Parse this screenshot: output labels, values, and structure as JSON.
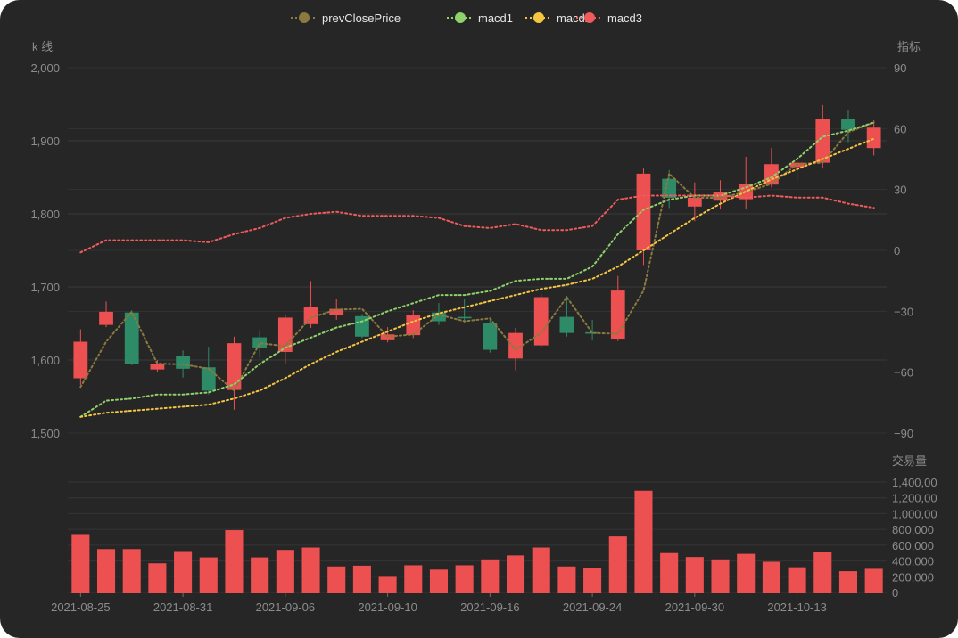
{
  "chart_data": {
    "type": "candlestick",
    "title": "",
    "legend": {
      "placement": "top-center",
      "items": [
        {
          "name": "prevClosePrice",
          "color": "#8b7a3f"
        },
        {
          "name": "macd1",
          "color": "#8fd16a"
        },
        {
          "name": "macd2",
          "color": "#f5c542"
        },
        {
          "name": "macd3",
          "color": "#f05a5a"
        }
      ]
    },
    "axes": {
      "price": {
        "label": "k 线",
        "min": 1500,
        "max": 2000,
        "ticks": [
          "2,000",
          "1,900",
          "1,800",
          "1,700",
          "1,600",
          "1,500"
        ],
        "tick_values": [
          2000,
          1900,
          1800,
          1700,
          1600,
          1500
        ]
      },
      "indicator": {
        "label": "指标",
        "min": -90,
        "max": 90,
        "ticks": [
          "90",
          "60",
          "30",
          "0",
          "−30",
          "−60",
          "−90"
        ],
        "tick_values": [
          90,
          60,
          30,
          0,
          -30,
          -60,
          -90
        ]
      },
      "volume": {
        "label": "交易量",
        "min": 0,
        "max": 1400000,
        "ticks": [
          "1,400,00",
          "1,200,00",
          "1,000,00",
          "800,000",
          "600,000",
          "400,000",
          "200,000",
          "0"
        ],
        "tick_values": [
          1400000,
          1200000,
          1000000,
          800000,
          600000,
          400000,
          200000,
          0
        ]
      }
    },
    "x_tick_labels": [
      {
        "index": 0,
        "label": "2021-08-25"
      },
      {
        "index": 4,
        "label": "2021-08-31"
      },
      {
        "index": 8,
        "label": "2021-09-06"
      },
      {
        "index": 12,
        "label": "2021-09-10"
      },
      {
        "index": 16,
        "label": "2021-09-16"
      },
      {
        "index": 20,
        "label": "2021-09-24"
      },
      {
        "index": 24,
        "label": "2021-09-30"
      },
      {
        "index": 28,
        "label": "2021-10-13"
      }
    ],
    "colors": {
      "up": "#ec5050",
      "down": "#2e8b68",
      "volume": "#ec5050"
    },
    "candles": [
      {
        "open": 1575,
        "close": 1625,
        "high": 1642,
        "low": 1566
      },
      {
        "open": 1648,
        "close": 1666,
        "high": 1680,
        "low": 1645
      },
      {
        "open": 1665,
        "close": 1595,
        "high": 1668,
        "low": 1593
      },
      {
        "open": 1587,
        "close": 1594,
        "high": 1600,
        "low": 1583
      },
      {
        "open": 1606,
        "close": 1588,
        "high": 1613,
        "low": 1576
      },
      {
        "open": 1590,
        "close": 1558,
        "high": 1618,
        "low": 1553
      },
      {
        "open": 1559,
        "close": 1623,
        "high": 1632,
        "low": 1532
      },
      {
        "open": 1631,
        "close": 1617,
        "high": 1641,
        "low": 1603
      },
      {
        "open": 1611,
        "close": 1658,
        "high": 1662,
        "low": 1595
      },
      {
        "open": 1649,
        "close": 1672,
        "high": 1708,
        "low": 1644
      },
      {
        "open": 1661,
        "close": 1670,
        "high": 1683,
        "low": 1655
      },
      {
        "open": 1660,
        "close": 1632,
        "high": 1663,
        "low": 1630
      },
      {
        "open": 1627,
        "close": 1635,
        "high": 1645,
        "low": 1624
      },
      {
        "open": 1634,
        "close": 1662,
        "high": 1668,
        "low": 1630
      },
      {
        "open": 1665,
        "close": 1653,
        "high": 1678,
        "low": 1648
      },
      {
        "open": 1659,
        "close": 1657,
        "high": 1683,
        "low": 1650
      },
      {
        "open": 1651,
        "close": 1614,
        "high": 1655,
        "low": 1610
      },
      {
        "open": 1602,
        "close": 1637,
        "high": 1644,
        "low": 1586
      },
      {
        "open": 1620,
        "close": 1686,
        "high": 1690,
        "low": 1618
      },
      {
        "open": 1659,
        "close": 1637,
        "high": 1688,
        "low": 1632
      },
      {
        "open": 1638,
        "close": 1636,
        "high": 1655,
        "low": 1627
      },
      {
        "open": 1628,
        "close": 1695,
        "high": 1715,
        "low": 1626
      },
      {
        "open": 1750,
        "close": 1855,
        "high": 1862,
        "low": 1730
      },
      {
        "open": 1848,
        "close": 1822,
        "high": 1860,
        "low": 1808
      },
      {
        "open": 1810,
        "close": 1822,
        "high": 1843,
        "low": 1790
      },
      {
        "open": 1818,
        "close": 1830,
        "high": 1846,
        "low": 1806
      },
      {
        "open": 1820,
        "close": 1841,
        "high": 1878,
        "low": 1806
      },
      {
        "open": 1840,
        "close": 1868,
        "high": 1890,
        "low": 1836
      },
      {
        "open": 1864,
        "close": 1870,
        "high": 1876,
        "low": 1844
      },
      {
        "open": 1870,
        "close": 1930,
        "high": 1949,
        "low": 1862
      },
      {
        "open": 1930,
        "close": 1915,
        "high": 1942,
        "low": 1898
      },
      {
        "open": 1890,
        "close": 1918,
        "high": 1928,
        "low": 1880
      }
    ],
    "volume": [
      740000,
      550000,
      550000,
      370000,
      525000,
      445000,
      790000,
      445000,
      540000,
      570000,
      330000,
      340000,
      210000,
      345000,
      290000,
      345000,
      420000,
      470000,
      570000,
      330000,
      310000,
      710000,
      1290000,
      500000,
      450000,
      420000,
      490000,
      390000,
      320000,
      510000,
      270000,
      300000
    ],
    "series": [
      {
        "name": "prevClosePrice",
        "axis": "price",
        "values": [
          1563,
          1625,
          1666,
          1595,
          1594,
          1588,
          1558,
          1623,
          1619,
          1658,
          1669,
          1670,
          1632,
          1635,
          1662,
          1653,
          1657,
          1614,
          1637,
          1686,
          1637,
          1636,
          1695,
          1855,
          1822,
          1822,
          1830,
          1841,
          1868,
          1870,
          1912,
          1925
        ]
      },
      {
        "name": "macd1",
        "axis": "indicator",
        "values": [
          -82,
          -74,
          -73,
          -71,
          -71,
          -70,
          -66,
          -56,
          -48,
          -43,
          -38,
          -35,
          -30,
          -26,
          -22,
          -22,
          -20,
          -15,
          -14,
          -14,
          -8,
          8,
          20,
          25,
          27,
          27,
          31,
          36,
          45,
          56,
          59,
          63
        ]
      },
      {
        "name": "macd2",
        "axis": "indicator",
        "values": [
          -82,
          -80,
          -79,
          -78,
          -77,
          -76,
          -73,
          -69,
          -63,
          -56,
          -50,
          -45,
          -40,
          -35,
          -31,
          -28,
          -25,
          -22,
          -19,
          -17,
          -14,
          -8,
          0,
          8,
          16,
          23,
          29,
          35,
          40,
          45,
          50,
          55
        ]
      },
      {
        "name": "macd3",
        "axis": "indicator",
        "values": [
          -1,
          5,
          5,
          5,
          5,
          4,
          8,
          11,
          16,
          18,
          19,
          17,
          17,
          17,
          16,
          12,
          11,
          13,
          10,
          10,
          12,
          25,
          27,
          27,
          27,
          27,
          26,
          27,
          26,
          26,
          23,
          21
        ]
      }
    ]
  }
}
